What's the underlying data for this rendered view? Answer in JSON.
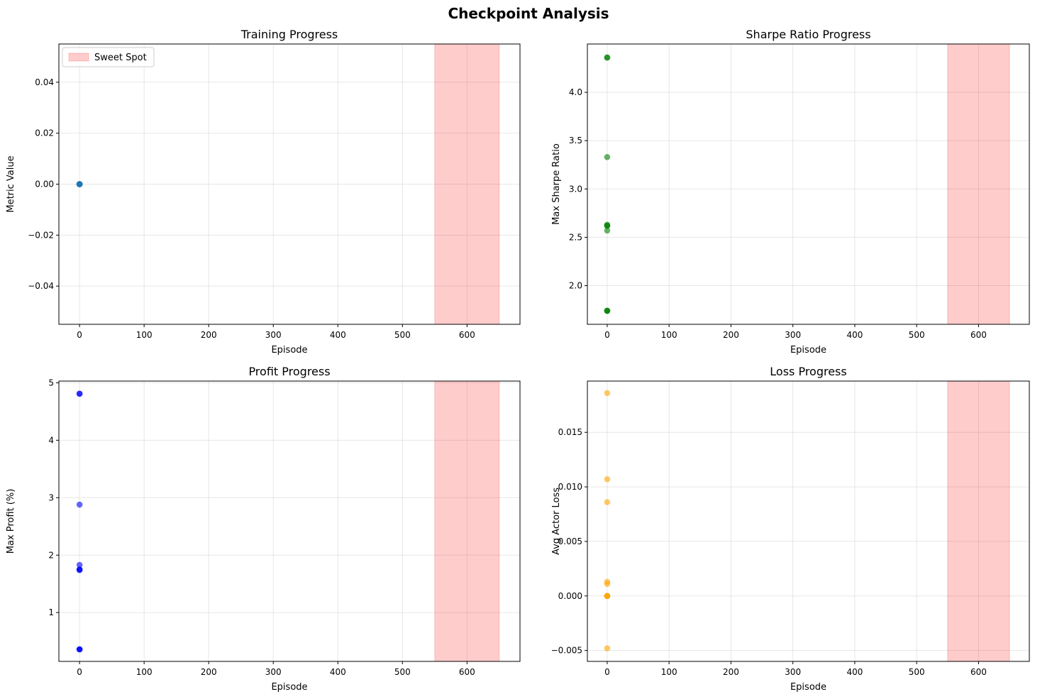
{
  "suptitle": "Checkpoint Analysis",
  "colors": {
    "sweet_spot": "#ff0000",
    "training": "#1f77b4",
    "sharpe": "#008000",
    "profit": "#0000ff",
    "loss": "#ffa500",
    "grid": "#b0b0b0"
  },
  "chart_data": [
    {
      "type": "scatter",
      "title": "Training Progress",
      "xlabel": "Episode",
      "ylabel": "Metric Value",
      "xlim": [
        -32,
        682
      ],
      "ylim": [
        -0.055,
        0.055
      ],
      "xticks": [
        0,
        100,
        200,
        300,
        400,
        500,
        600
      ],
      "yticks": [
        -0.04,
        -0.02,
        0.0,
        0.02,
        0.04
      ],
      "ytick_labels": [
        "−0.04",
        "−0.02",
        "0.00",
        "0.02",
        "0.04"
      ],
      "grid": true,
      "color_key": "training",
      "span": [
        550,
        650
      ],
      "legend": {
        "position": "top-left",
        "entries": [
          "Sweet Spot"
        ]
      },
      "x": [
        0,
        0,
        0,
        0,
        0,
        0,
        0,
        0,
        0,
        0
      ],
      "y": [
        0,
        0,
        0,
        0,
        0,
        0,
        0,
        0,
        0,
        0
      ]
    },
    {
      "type": "scatter",
      "title": "Sharpe Ratio Progress",
      "xlabel": "Episode",
      "ylabel": "Max Sharpe Ratio",
      "xlim": [
        -32,
        682
      ],
      "ylim": [
        1.6,
        4.5
      ],
      "xticks": [
        0,
        100,
        200,
        300,
        400,
        500,
        600
      ],
      "yticks": [
        2.0,
        2.5,
        3.0,
        3.5,
        4.0
      ],
      "ytick_labels": [
        "2.0",
        "2.5",
        "3.0",
        "3.5",
        "4.0"
      ],
      "grid": true,
      "color_key": "sharpe",
      "span": [
        550,
        650
      ],
      "x": [
        0,
        0,
        0,
        0,
        0,
        0,
        0,
        0,
        0,
        0
      ],
      "y": [
        4.36,
        4.36,
        3.33,
        2.63,
        2.62,
        2.62,
        2.57,
        1.74,
        1.74,
        1.74
      ]
    },
    {
      "type": "scatter",
      "title": "Profit Progress",
      "xlabel": "Episode",
      "ylabel": "Max Profit (%)",
      "xlim": [
        -32,
        682
      ],
      "ylim": [
        0.15,
        5.03
      ],
      "xticks": [
        0,
        100,
        200,
        300,
        400,
        500,
        600
      ],
      "yticks": [
        1,
        2,
        3,
        4,
        5
      ],
      "ytick_labels": [
        "1",
        "2",
        "3",
        "4",
        "5"
      ],
      "grid": true,
      "color_key": "profit",
      "span": [
        550,
        650
      ],
      "x": [
        0,
        0,
        0,
        0,
        0,
        0,
        0,
        0,
        0,
        0
      ],
      "y": [
        4.81,
        4.81,
        2.88,
        1.83,
        1.75,
        1.75,
        1.74,
        0.36,
        0.36,
        0.36
      ]
    },
    {
      "type": "scatter",
      "title": "Loss Progress",
      "xlabel": "Episode",
      "ylabel": "Avg Actor Loss",
      "xlim": [
        -32,
        682
      ],
      "ylim": [
        -0.006,
        0.0197
      ],
      "xticks": [
        0,
        100,
        200,
        300,
        400,
        500,
        600
      ],
      "yticks": [
        -0.005,
        0.0,
        0.005,
        0.01,
        0.015
      ],
      "ytick_labels": [
        "−0.005",
        "0.000",
        "0.005",
        "0.010",
        "0.015"
      ],
      "grid": true,
      "color_key": "loss",
      "span": [
        550,
        650
      ],
      "x": [
        0,
        0,
        0,
        0,
        0,
        0,
        0,
        0,
        0,
        0
      ],
      "y": [
        0.0186,
        0.0107,
        0.0086,
        0.0013,
        0.0011,
        0.0,
        0.0,
        0.0,
        -0.0048,
        0.0
      ]
    }
  ]
}
